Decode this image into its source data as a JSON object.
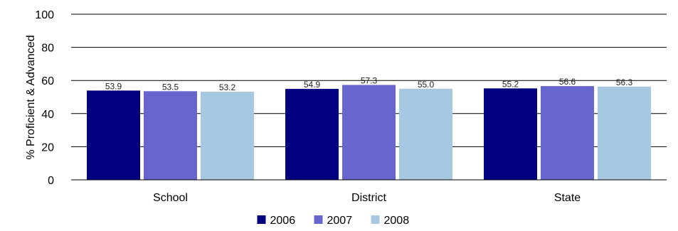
{
  "chart_data": {
    "type": "bar",
    "categories": [
      "School",
      "District",
      "State"
    ],
    "series": [
      {
        "name": "2006",
        "values": [
          53.9,
          54.9,
          55.2
        ],
        "color": "#000080"
      },
      {
        "name": "2007",
        "values": [
          53.5,
          57.3,
          56.6
        ],
        "color": "#6666cc"
      },
      {
        "name": "2008",
        "values": [
          53.2,
          55.0,
          56.3
        ],
        "color": "#a6c8e0"
      }
    ],
    "value_labels": [
      [
        "53.9",
        "53.5",
        "53.2"
      ],
      [
        "54.9",
        "57.3",
        "55.0"
      ],
      [
        "55.2",
        "56.6",
        "56.3"
      ]
    ],
    "ylabel": "% Proficient & Advanced",
    "xlabel": "",
    "title": "",
    "ylim": [
      0,
      100
    ],
    "yticks": [
      0,
      20,
      40,
      60,
      80,
      100
    ],
    "grid": true,
    "legend_position": "bottom"
  }
}
